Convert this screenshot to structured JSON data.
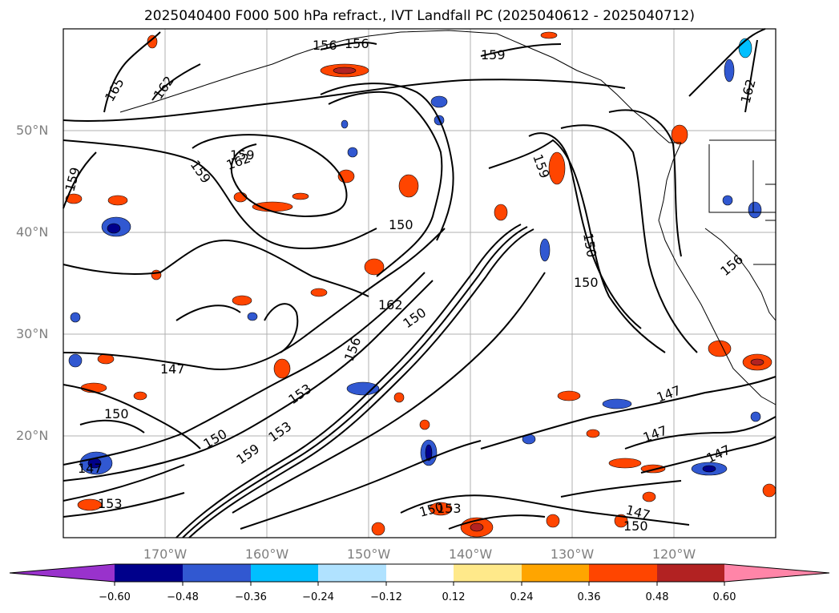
{
  "title": "2025040400 F000 500 hPa refract., IVT Landfall PC (2025040612 - 2025040712)",
  "lat_labels": [
    "50°N",
    "40°N",
    "30°N",
    "20°N"
  ],
  "lon_labels": [
    "170°W",
    "160°W",
    "150°W",
    "140°W",
    "130°W",
    "120°W"
  ],
  "colorbar": {
    "ticks": [
      "−0.60",
      "−0.48",
      "−0.36",
      "−0.24",
      "−0.12",
      "0.12",
      "0.24",
      "0.36",
      "0.48",
      "0.60"
    ],
    "colors": [
      "#9932cc",
      "#00008b",
      "#3158d1",
      "#00bfff",
      "#b0e2ff",
      "#ffffff",
      "#ffe98a",
      "#ffa500",
      "#ff4500",
      "#b22222",
      "#ff85a8"
    ]
  },
  "contour_labels": [
    "165",
    "162",
    "156",
    "156",
    "159",
    "159",
    "159",
    "159",
    "159",
    "150",
    "156",
    "150",
    "162",
    "150",
    "150",
    "162",
    "156",
    "147",
    "153",
    "150",
    "150",
    "153",
    "147",
    "147",
    "147",
    "147",
    "150",
    "147",
    "159",
    "153",
    "153",
    "150",
    "162"
  ],
  "map_extent": {
    "lon": [
      -180,
      -110
    ],
    "lat": [
      10,
      60
    ]
  }
}
